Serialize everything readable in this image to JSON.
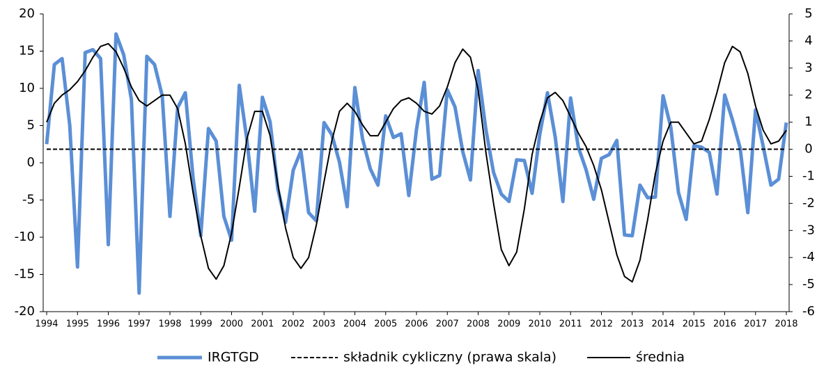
{
  "chart_data": {
    "type": "line",
    "categories": [
      "1994",
      null,
      null,
      null,
      "1995",
      null,
      null,
      null,
      "1996",
      null,
      null,
      null,
      "1997",
      null,
      null,
      null,
      "1998",
      null,
      null,
      null,
      "1999",
      null,
      null,
      null,
      "2000",
      null,
      null,
      null,
      "2001",
      null,
      null,
      null,
      "2002",
      null,
      null,
      null,
      "2003",
      null,
      null,
      null,
      "2004",
      null,
      null,
      null,
      "2005",
      null,
      null,
      null,
      "2006",
      null,
      null,
      null,
      "2007",
      null,
      null,
      null,
      "2008",
      null,
      null,
      null,
      "2009",
      null,
      null,
      null,
      "2010",
      null,
      null,
      null,
      "2011",
      null,
      null,
      null,
      "2012",
      null,
      null,
      null,
      "2013",
      null,
      null,
      null,
      "2014",
      null,
      null,
      null,
      "2015",
      null,
      null,
      null,
      "2016",
      null,
      null,
      null,
      "2017",
      null,
      null,
      null,
      "2018"
    ],
    "series": [
      {
        "name": "IRGTGD",
        "color": "#5b8fd6",
        "linewidth": 5,
        "line_style": "solid",
        "axis": "y",
        "values": [
          2.5,
          13.2,
          14,
          5,
          -14,
          14.8,
          15.2,
          14,
          -11,
          17.3,
          14.5,
          8.5,
          -17.5,
          14.3,
          13.2,
          9,
          -7.2,
          7.4,
          9.4,
          -2,
          -9.8,
          4.6,
          2.9,
          -7.2,
          -10.4,
          10.4,
          3,
          -6.5,
          8.8,
          5.5,
          -3.5,
          -8,
          -1,
          1.6,
          -6.7,
          -7.8,
          5.4,
          3.8,
          0.1,
          -5.9,
          10.1,
          3.2,
          -0.8,
          -3,
          6.3,
          3.4,
          3.9,
          -4.4,
          4.5,
          10.8,
          -2.2,
          -1.7,
          9.8,
          7.5,
          1.5,
          -2.3,
          12.4,
          4.5,
          -1.3,
          -4.2,
          -5.2,
          0.4,
          0.3,
          -4.1,
          3.8,
          9.4,
          3.5,
          -5.2,
          8.7,
          2.1,
          -0.9,
          -4.9,
          0.6,
          1.1,
          3,
          -9.7,
          -9.8,
          -3,
          -4.7,
          -4.6,
          9,
          4.8,
          -4,
          -7.6,
          2.3,
          2.1,
          1.4,
          -4.2,
          9.1,
          5.8,
          2,
          -6.7,
          7.1,
          2.2,
          -3,
          -2.2,
          5.4
        ]
      },
      {
        "name": "składnik cykliczny (prawa skala)",
        "color": "#000000",
        "linewidth": 2,
        "line_style": "dashed",
        "axis": "y2",
        "values": [
          0,
          0,
          0,
          0,
          0,
          0,
          0,
          0,
          0,
          0,
          0,
          0,
          0,
          0,
          0,
          0,
          0,
          0,
          0,
          0,
          0,
          0,
          0,
          0,
          0,
          0,
          0,
          0,
          0,
          0,
          0,
          0,
          0,
          0,
          0,
          0,
          0,
          0,
          0,
          0,
          0,
          0,
          0,
          0,
          0,
          0,
          0,
          0,
          0,
          0,
          0,
          0,
          0,
          0,
          0,
          0,
          0,
          0,
          0,
          0,
          0,
          0,
          0,
          0,
          0,
          0,
          0,
          0,
          0,
          0,
          0,
          0,
          0,
          0,
          0,
          0,
          0,
          0,
          0,
          0,
          0,
          0,
          0,
          0,
          0,
          0,
          0,
          0,
          0,
          0,
          0,
          0,
          0,
          0,
          0,
          0,
          0
        ]
      },
      {
        "name": "średnia",
        "color": "#000000",
        "linewidth": 2,
        "line_style": "solid",
        "axis": "y2",
        "values": [
          1.0,
          1.7,
          2.0,
          2.2,
          2.5,
          2.9,
          3.4,
          3.8,
          3.9,
          3.6,
          3.0,
          2.3,
          1.8,
          1.6,
          1.8,
          2.0,
          2.0,
          1.5,
          0.2,
          -1.6,
          -3.2,
          -4.4,
          -4.8,
          -4.3,
          -3.1,
          -1.4,
          0.4,
          1.4,
          1.4,
          0.5,
          -1.3,
          -2.9,
          -4.0,
          -4.4,
          -4.0,
          -2.8,
          -1.2,
          0.3,
          1.4,
          1.7,
          1.4,
          0.9,
          0.5,
          0.5,
          1.0,
          1.5,
          1.8,
          1.9,
          1.7,
          1.4,
          1.3,
          1.6,
          2.3,
          3.2,
          3.7,
          3.4,
          2.2,
          -0.1,
          -2.0,
          -3.7,
          -4.3,
          -3.8,
          -2.2,
          -0.2,
          1.0,
          1.9,
          2.1,
          1.8,
          1.2,
          0.6,
          0.1,
          -0.6,
          -1.5,
          -2.7,
          -3.9,
          -4.7,
          -4.9,
          -4.1,
          -2.6,
          -0.9,
          0.3,
          1.0,
          1.0,
          0.6,
          0.2,
          0.3,
          1.1,
          2.1,
          3.2,
          3.8,
          3.6,
          2.8,
          1.6,
          0.7,
          0.2,
          0.3,
          0.7
        ]
      }
    ],
    "ylim": [
      -20,
      20
    ],
    "yticks": [
      -20,
      -15,
      -10,
      -5,
      0,
      5,
      10,
      15,
      20
    ],
    "y2lim": [
      -6,
      5
    ],
    "y2ticks": [
      -6,
      -5,
      -4,
      -3,
      -2,
      -1,
      0,
      1,
      2,
      3,
      4,
      5
    ],
    "grid": false,
    "legend": "bottom"
  }
}
